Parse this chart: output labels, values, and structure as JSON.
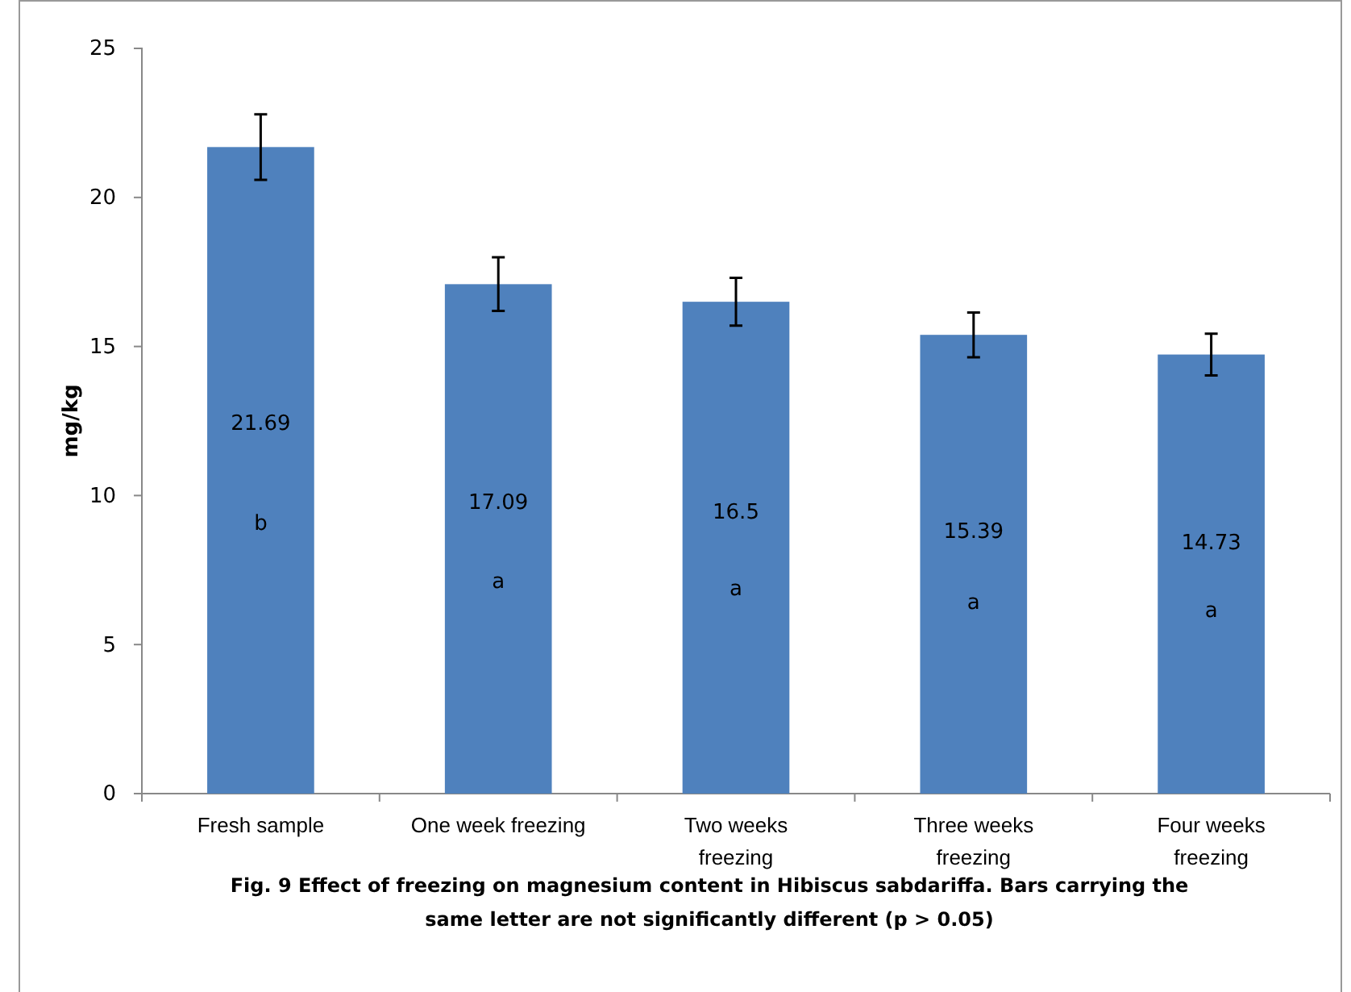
{
  "chart_data": {
    "type": "bar",
    "ylabel": "mg/kg",
    "categories": [
      "Fresh sample",
      "One week freezing",
      "Two weeks freezing",
      "Three weeks freezing",
      "Four weeks freezing"
    ],
    "values": [
      21.69,
      17.09,
      16.5,
      15.39,
      14.73
    ],
    "errors": [
      1.1,
      0.9,
      0.8,
      0.75,
      0.7
    ],
    "color": "#4f81bd",
    "data_labels": true,
    "ylim": [
      0,
      25
    ],
    "yticks": [
      0,
      5,
      10,
      15,
      20,
      25
    ],
    "grid": false,
    "annotations": [
      "b",
      "a",
      "a",
      "a",
      "a",
      "Fig. 9 Effect of freezing on magnesium content in Hibiscus sabdariffa. Bars carrying the same letter are not significantly different (p > 0.05)"
    ]
  }
}
